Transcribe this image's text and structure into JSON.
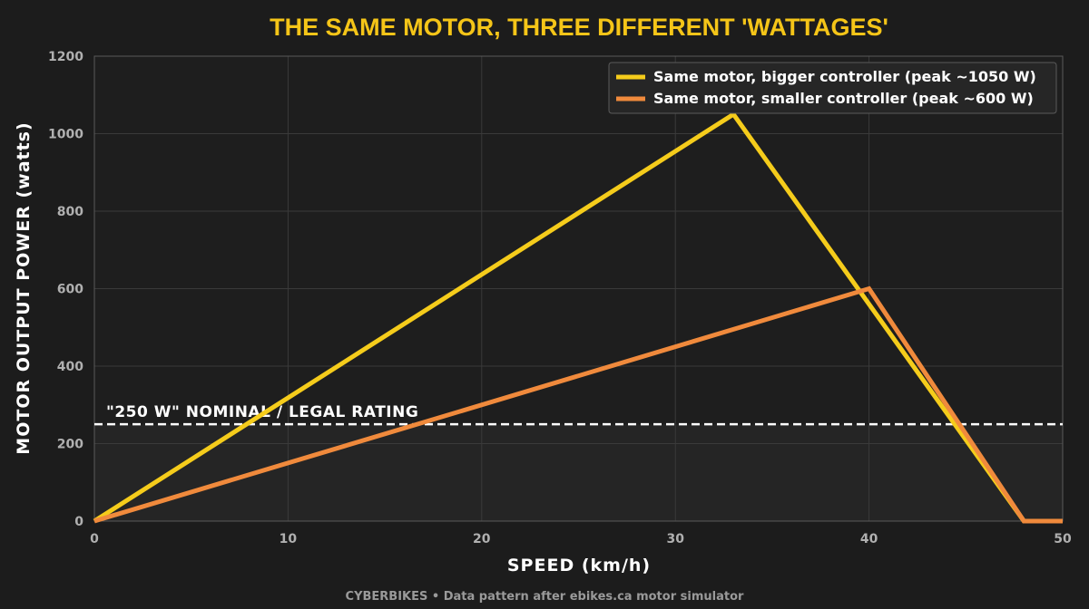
{
  "colors": {
    "background": "#1c1c1c",
    "plot_background": "#1e1e1e",
    "grid": "#3a3a3a",
    "title": "#f5c518",
    "series_bigger": "#f5cc1b",
    "series_smaller": "#f08a3c",
    "nominal_line": "#ffffff"
  },
  "footer": "CYBERBIKES  •  Data pattern after ebikes.ca motor simulator",
  "chart_data": {
    "type": "line",
    "title": "THE SAME MOTOR, THREE DIFFERENT 'WATTAGES'",
    "xlabel": "SPEED  (km/h)",
    "ylabel": "MOTOR OUTPUT POWER  (watts)",
    "xlim": [
      0,
      50
    ],
    "ylim": [
      0,
      1200
    ],
    "xticks": [
      0,
      10,
      20,
      30,
      40,
      50
    ],
    "yticks": [
      0,
      200,
      400,
      600,
      800,
      1000,
      1200
    ],
    "grid": true,
    "legend_position": "top-right",
    "series": [
      {
        "name": "Same motor, bigger controller (peak ~1050 W)",
        "color": "#f5cc1b",
        "points": [
          [
            0,
            0
          ],
          [
            33,
            1050
          ],
          [
            48,
            0
          ],
          [
            50,
            0
          ]
        ]
      },
      {
        "name": "Same motor, smaller controller (peak ~600 W)",
        "color": "#f08a3c",
        "points": [
          [
            0,
            0
          ],
          [
            40,
            600
          ],
          [
            48,
            0
          ],
          [
            50,
            0
          ]
        ]
      }
    ],
    "reference_line": {
      "y": 250,
      "label": "\"250 W\" NOMINAL / LEGAL RATING"
    }
  }
}
